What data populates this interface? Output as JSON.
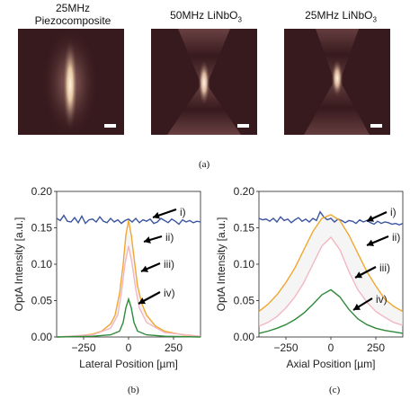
{
  "figure": {
    "panels": [
      {
        "title_line1": "25MHz",
        "title_line2": "Piezocomposite"
      },
      {
        "title_line1": "50MHz LiNbO",
        "title_sub": "3"
      },
      {
        "title_line1": "25MHz LiNbO",
        "title_sub": "3"
      }
    ],
    "caption_a": "(a)",
    "caption_b": "(b)",
    "caption_c": "(c)"
  },
  "colors": {
    "blue": "#3b55a0",
    "orange": "#f0a830",
    "pink": "#f4b6c2",
    "green": "#2f8a3a"
  },
  "chart_data": [
    {
      "type": "line",
      "xlabel": "Lateral Position [µm]",
      "ylabel": "OptA Intensity [a.u.]",
      "xlim": [
        -400,
        400
      ],
      "ylim": [
        0,
        0.2
      ],
      "xticks": [
        -250,
        0,
        250
      ],
      "yticks": [
        0.0,
        0.05,
        0.1,
        0.15,
        0.2
      ],
      "ytick_labels": [
        "0.00",
        "0.05",
        "0.10",
        "0.15",
        "0.20"
      ],
      "annotations": [
        "i)",
        "ii)",
        "iii)",
        "iv)"
      ],
      "series": [
        {
          "key": "i",
          "color": "#3b55a0",
          "x": [
            -400,
            -380,
            -360,
            -340,
            -320,
            -300,
            -280,
            -260,
            -240,
            -220,
            -200,
            -180,
            -160,
            -140,
            -120,
            -100,
            -80,
            -60,
            -40,
            -20,
            0,
            20,
            40,
            60,
            80,
            100,
            120,
            140,
            160,
            180,
            200,
            220,
            240,
            260,
            280,
            300,
            320,
            340,
            360,
            380,
            400
          ],
          "y": [
            0.163,
            0.16,
            0.167,
            0.159,
            0.158,
            0.164,
            0.157,
            0.166,
            0.156,
            0.161,
            0.162,
            0.158,
            0.165,
            0.159,
            0.157,
            0.163,
            0.158,
            0.161,
            0.156,
            0.16,
            0.162,
            0.158,
            0.163,
            0.157,
            0.161,
            0.159,
            0.162,
            0.156,
            0.158,
            0.163,
            0.16,
            0.157,
            0.162,
            0.159,
            0.155,
            0.161,
            0.158,
            0.16,
            0.157,
            0.159,
            0.158
          ]
        },
        {
          "key": "ii",
          "color": "#f0a830",
          "x": [
            -400,
            -300,
            -200,
            -150,
            -100,
            -75,
            -50,
            -30,
            -15,
            0,
            15,
            30,
            50,
            75,
            100,
            150,
            200,
            300,
            400
          ],
          "y": [
            0.0,
            0.001,
            0.004,
            0.008,
            0.018,
            0.03,
            0.06,
            0.1,
            0.14,
            0.16,
            0.14,
            0.11,
            0.07,
            0.045,
            0.03,
            0.015,
            0.008,
            0.003,
            0.001
          ]
        },
        {
          "key": "iii",
          "color": "#f4b6c2",
          "x": [
            -400,
            -200,
            -100,
            -60,
            -40,
            -20,
            0,
            20,
            40,
            60,
            100,
            200,
            400
          ],
          "y": [
            0.0,
            0.003,
            0.012,
            0.03,
            0.06,
            0.1,
            0.125,
            0.1,
            0.065,
            0.04,
            0.02,
            0.006,
            0.001
          ]
        },
        {
          "key": "iv",
          "color": "#2f8a3a",
          "x": [
            -400,
            -200,
            -100,
            -50,
            -30,
            -15,
            0,
            15,
            30,
            50,
            100,
            200,
            400
          ],
          "y": [
            0.0,
            0.001,
            0.003,
            0.008,
            0.02,
            0.04,
            0.052,
            0.04,
            0.02,
            0.008,
            0.003,
            0.001,
            0.0
          ]
        }
      ]
    },
    {
      "type": "line",
      "xlabel": "Axial Position [µm]",
      "ylabel": "OptA Intensity [a.u.]",
      "xlim": [
        -400,
        400
      ],
      "ylim": [
        0,
        0.2
      ],
      "xticks": [
        -250,
        0,
        250
      ],
      "yticks": [
        0.0,
        0.05,
        0.1,
        0.15,
        0.2
      ],
      "ytick_labels": [
        "0.00",
        "0.05",
        "0.10",
        "0.15",
        "0.20"
      ],
      "annotations": [
        "i)",
        "ii)",
        "iii)",
        "iv)"
      ],
      "series": [
        {
          "key": "i",
          "color": "#3b55a0",
          "x": [
            -400,
            -380,
            -360,
            -340,
            -320,
            -300,
            -280,
            -260,
            -240,
            -220,
            -200,
            -180,
            -160,
            -140,
            -120,
            -100,
            -80,
            -60,
            -40,
            -20,
            0,
            20,
            40,
            60,
            80,
            100,
            120,
            140,
            160,
            180,
            200,
            220,
            240,
            260,
            280,
            300,
            320,
            340,
            360,
            380,
            400
          ],
          "y": [
            0.163,
            0.161,
            0.162,
            0.159,
            0.163,
            0.158,
            0.165,
            0.16,
            0.162,
            0.157,
            0.161,
            0.164,
            0.159,
            0.162,
            0.158,
            0.163,
            0.16,
            0.172,
            0.165,
            0.161,
            0.163,
            0.158,
            0.162,
            0.16,
            0.157,
            0.16,
            0.159,
            0.156,
            0.161,
            0.158,
            0.16,
            0.157,
            0.155,
            0.159,
            0.156,
            0.158,
            0.157,
            0.155,
            0.156,
            0.154,
            0.156
          ]
        },
        {
          "key": "ii",
          "color": "#f0a830",
          "x": [
            -400,
            -350,
            -300,
            -250,
            -200,
            -150,
            -100,
            -50,
            0,
            50,
            100,
            150,
            200,
            250,
            300,
            350,
            400
          ],
          "y": [
            0.035,
            0.045,
            0.058,
            0.075,
            0.095,
            0.12,
            0.145,
            0.163,
            0.168,
            0.16,
            0.14,
            0.115,
            0.09,
            0.07,
            0.052,
            0.042,
            0.035
          ]
        },
        {
          "key": "iii",
          "color": "#f4b6c2",
          "x": [
            -400,
            -350,
            -300,
            -250,
            -200,
            -150,
            -100,
            -50,
            0,
            50,
            100,
            150,
            200,
            250,
            300,
            350,
            400
          ],
          "y": [
            0.015,
            0.02,
            0.028,
            0.04,
            0.055,
            0.075,
            0.1,
            0.125,
            0.137,
            0.12,
            0.09,
            0.065,
            0.048,
            0.035,
            0.027,
            0.02,
            0.016
          ]
        },
        {
          "key": "iv",
          "color": "#2f8a3a",
          "x": [
            -400,
            -350,
            -300,
            -250,
            -200,
            -150,
            -100,
            -50,
            0,
            50,
            100,
            150,
            200,
            250,
            300,
            350,
            400
          ],
          "y": [
            0.005,
            0.008,
            0.012,
            0.017,
            0.024,
            0.033,
            0.045,
            0.058,
            0.065,
            0.055,
            0.038,
            0.025,
            0.017,
            0.012,
            0.009,
            0.007,
            0.005
          ]
        }
      ]
    }
  ]
}
